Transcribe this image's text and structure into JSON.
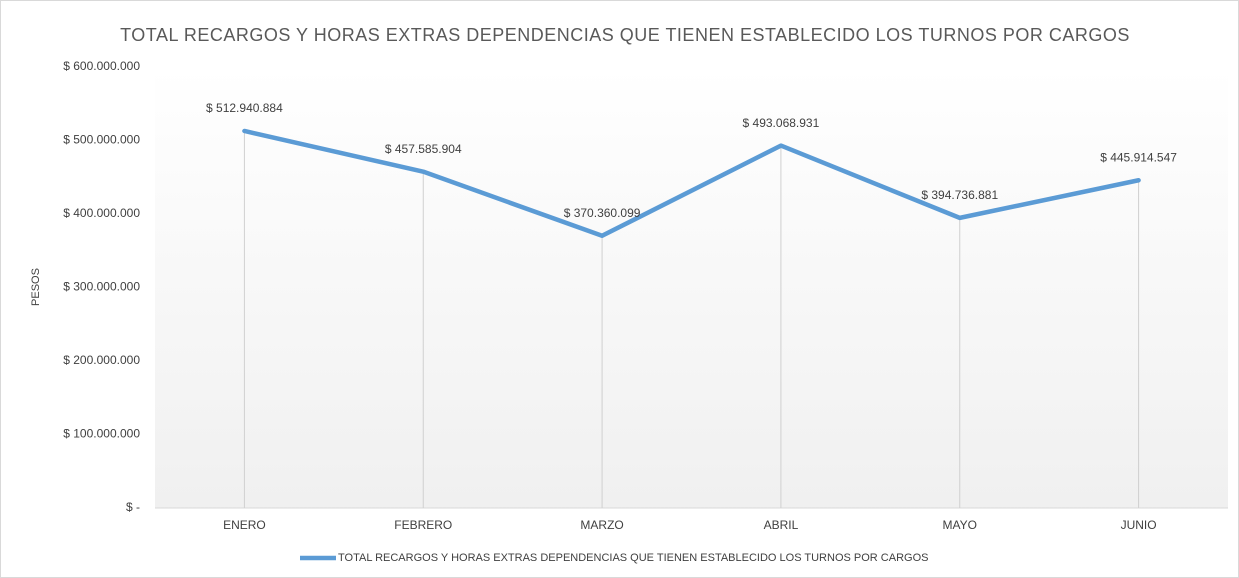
{
  "chart_data": {
    "type": "line",
    "title": "TOTAL RECARGOS Y HORAS EXTRAS DEPENDENCIAS QUE TIENEN ESTABLECIDO LOS TURNOS POR CARGOS",
    "y_label": "PESOS",
    "categories": [
      "ENERO",
      "FEBRERO",
      "MARZO",
      "ABRIL",
      "MAYO",
      "JUNIO"
    ],
    "series": [
      {
        "name": "TOTAL RECARGOS Y HORAS EXTRAS DEPENDENCIAS QUE TIENEN ESTABLECIDO LOS TURNOS POR CARGOS",
        "color": "#5b9bd5",
        "values": [
          512940884,
          457585904,
          370360099,
          493068931,
          394736881,
          445914547
        ],
        "value_labels": [
          "$ 512.940.884",
          "$ 457.585.904",
          "$ 370.360.099",
          "$ 493.068.931",
          "$ 394.736.881",
          "$ 445.914.547"
        ]
      }
    ],
    "ylim": [
      0,
      600000000
    ],
    "yticks": [
      {
        "value": 0,
        "label": "$ -"
      },
      {
        "value": 100000000,
        "label": "$ 100.000.000"
      },
      {
        "value": 200000000,
        "label": "$ 200.000.000"
      },
      {
        "value": 300000000,
        "label": "$ 300.000.000"
      },
      {
        "value": 400000000,
        "label": "$ 400.000.000"
      },
      {
        "value": 500000000,
        "label": "$ 500.000.000"
      },
      {
        "value": 600000000,
        "label": "$ 600.000.000"
      }
    ],
    "drop_lines": true,
    "legend": "bottom"
  }
}
